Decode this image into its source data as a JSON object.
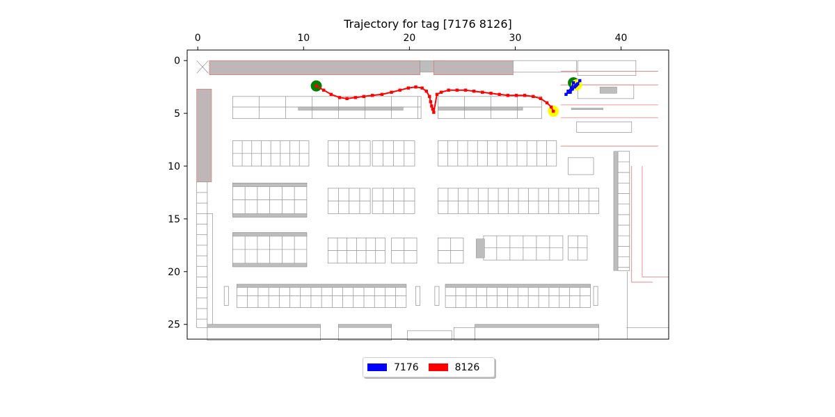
{
  "chart_data": {
    "type": "scatter",
    "title": "Trajectory for tag [7176 8126]",
    "xlabel": "",
    "ylabel": "",
    "xlim": [
      -1,
      44.5
    ],
    "ylim": [
      26.4,
      -1
    ],
    "x_axis_position": "top",
    "x_ticks": [
      0,
      10,
      20,
      30,
      40
    ],
    "y_ticks": [
      0,
      5,
      10,
      15,
      20,
      25
    ],
    "grid": false,
    "background": "store floor plan image",
    "legend": {
      "placement": "bottom-center",
      "ncol": 2
    },
    "series": [
      {
        "name": "7176",
        "color": "#0000ff",
        "start_marker_color": "#008000",
        "end_marker_color": "#ffff00",
        "x": [
          35.5,
          35.3,
          35.0,
          34.8,
          35.1,
          35.6,
          35.9,
          36.1,
          35.7,
          35.2,
          35.4,
          35.8
        ],
        "y": [
          2.1,
          2.6,
          2.9,
          3.2,
          3.0,
          2.5,
          2.2,
          1.9,
          2.4,
          3.0,
          2.7,
          2.3
        ]
      },
      {
        "name": "8126",
        "color": "#ff0000",
        "start_marker_color": "#008000",
        "end_marker_color": "#ffff00",
        "x": [
          11.2,
          11.9,
          12.6,
          13.4,
          14.1,
          14.9,
          15.7,
          16.5,
          17.4,
          18.3,
          19.1,
          19.9,
          20.6,
          21.2,
          21.6,
          21.9,
          22.0,
          22.1,
          22.2,
          22.3,
          22.6,
          23.0,
          23.7,
          24.5,
          25.3,
          26.1,
          26.9,
          27.7,
          28.5,
          29.3,
          30.1,
          30.9,
          31.7,
          32.4,
          33.0,
          33.4,
          33.6
        ],
        "y": [
          2.4,
          2.8,
          3.2,
          3.5,
          3.6,
          3.5,
          3.4,
          3.3,
          3.2,
          3.0,
          2.8,
          2.6,
          2.5,
          2.6,
          2.9,
          3.4,
          3.9,
          4.3,
          4.6,
          4.9,
          3.2,
          3.0,
          2.8,
          2.8,
          2.8,
          2.9,
          3.0,
          3.1,
          3.2,
          3.3,
          3.3,
          3.3,
          3.4,
          3.6,
          4.0,
          4.4,
          4.8
        ]
      }
    ]
  }
}
